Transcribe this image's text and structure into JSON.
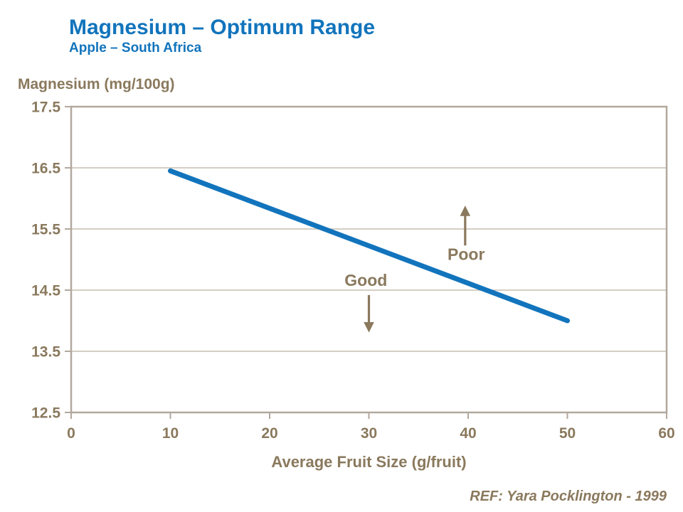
{
  "header": {
    "title": "Magnesium – Optimum Range",
    "subtitle": "Apple – South Africa"
  },
  "footer": {
    "reference": "REF: Yara Pocklington - 1999"
  },
  "colors": {
    "brand_blue": "#1274BC",
    "text_brown": "#8A795D",
    "axis_line": "#B2A89E",
    "grid_line": "#C6BEB1",
    "background": "#FFFFFF"
  },
  "chart_data": {
    "type": "line",
    "title": "Magnesium – Optimum Range",
    "subtitle": "Apple – South Africa",
    "xlabel": "Average Fruit Size (g/fruit)",
    "ylabel": "Magnesium (mg/100g)",
    "xlim": [
      0,
      60
    ],
    "ylim": [
      12.5,
      17.5
    ],
    "x_ticks": [
      0,
      10,
      20,
      30,
      40,
      50,
      60
    ],
    "x_tick_labels": [
      "0",
      "10",
      "20",
      "30",
      "40",
      "50",
      "60"
    ],
    "y_ticks": [
      12.5,
      13.5,
      14.5,
      15.5,
      16.5,
      17.5
    ],
    "y_tick_labels": [
      "12.5",
      "13.5",
      "14.5",
      "15.5",
      "16.5",
      "17.5"
    ],
    "grid": "horizontal gridlines only, plot area fully framed",
    "legend": "none",
    "series": [
      {
        "name": "optimum-range-line",
        "color": "#1274BC",
        "line_width": 7,
        "x": [
          10,
          50
        ],
        "y": [
          16.45,
          14.0
        ]
      }
    ],
    "annotations": [
      {
        "label": "Good",
        "label_x": 29.7,
        "label_y": 14.66,
        "arrow_x": 30.0,
        "arrow_from_y": 14.42,
        "arrow_to_y": 13.85,
        "direction": "down"
      },
      {
        "label": "Poor",
        "label_x": 39.8,
        "label_y": 15.09,
        "arrow_x": 39.7,
        "arrow_from_y": 15.23,
        "arrow_to_y": 15.84,
        "direction": "up"
      }
    ]
  }
}
